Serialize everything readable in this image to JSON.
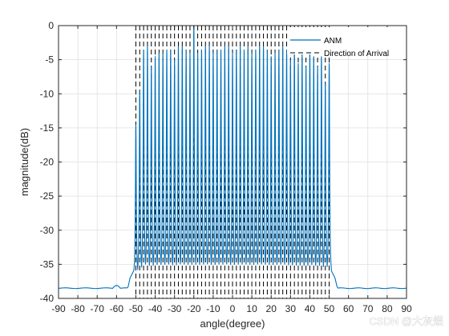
{
  "chart_data": {
    "type": "line",
    "xlabel": "angle(degree)",
    "ylabel": "magnitude(dB)",
    "xlim": [
      -90,
      90
    ],
    "ylim": [
      -40,
      0
    ],
    "xticks": [
      -90,
      -80,
      -70,
      -60,
      -50,
      -40,
      -30,
      -20,
      -10,
      0,
      10,
      20,
      30,
      40,
      50,
      60,
      70,
      80,
      90
    ],
    "yticks": [
      0,
      -5,
      -10,
      -15,
      -20,
      -25,
      -30,
      -35,
      -40
    ],
    "grid": true,
    "legend_position": "top-right",
    "series": [
      {
        "name": "ANM",
        "style": "solid",
        "color": "#0072BD",
        "peaks": [
          {
            "x": -50,
            "y": -14.5
          },
          {
            "x": -48,
            "y": -9.5
          },
          {
            "x": -46,
            "y": -3.5
          },
          {
            "x": -44,
            "y": -3.0
          },
          {
            "x": -42,
            "y": -6.0
          },
          {
            "x": -40,
            "y": -4.5
          },
          {
            "x": -38,
            "y": -4.0
          },
          {
            "x": -36,
            "y": -4.0
          },
          {
            "x": -34,
            "y": -3.5
          },
          {
            "x": -32,
            "y": -3.5
          },
          {
            "x": -30,
            "y": -5.0
          },
          {
            "x": -28,
            "y": -3.0
          },
          {
            "x": -26,
            "y": -3.0
          },
          {
            "x": -24,
            "y": -3.5
          },
          {
            "x": -22,
            "y": -4.0
          },
          {
            "x": -20,
            "y": 0.0
          },
          {
            "x": -18,
            "y": -4.0
          },
          {
            "x": -16,
            "y": -3.5
          },
          {
            "x": -14,
            "y": -3.0
          },
          {
            "x": -12,
            "y": -3.0
          },
          {
            "x": -10,
            "y": -4.0
          },
          {
            "x": -8,
            "y": -3.5
          },
          {
            "x": -6,
            "y": -3.5
          },
          {
            "x": -4,
            "y": -3.0
          },
          {
            "x": -2,
            "y": -3.0
          },
          {
            "x": 0,
            "y": -4.0
          },
          {
            "x": 2,
            "y": -3.5
          },
          {
            "x": 4,
            "y": -3.0
          },
          {
            "x": 6,
            "y": -3.5
          },
          {
            "x": 8,
            "y": -3.0
          },
          {
            "x": 10,
            "y": -4.0
          },
          {
            "x": 12,
            "y": -3.5
          },
          {
            "x": 14,
            "y": -3.0
          },
          {
            "x": 16,
            "y": -3.0
          },
          {
            "x": 18,
            "y": -3.5
          },
          {
            "x": 20,
            "y": -4.5
          },
          {
            "x": 22,
            "y": -4.0
          },
          {
            "x": 24,
            "y": -3.5
          },
          {
            "x": 26,
            "y": -3.0
          },
          {
            "x": 28,
            "y": -3.5
          },
          {
            "x": 30,
            "y": -5.0
          },
          {
            "x": 32,
            "y": -3.5
          },
          {
            "x": 34,
            "y": -5.5
          },
          {
            "x": 36,
            "y": -4.0
          },
          {
            "x": 38,
            "y": -6.0
          },
          {
            "x": 40,
            "y": -3.5
          },
          {
            "x": 42,
            "y": -4.5
          },
          {
            "x": 44,
            "y": -6.0
          },
          {
            "x": 46,
            "y": -4.5
          },
          {
            "x": 48,
            "y": -8.5
          },
          {
            "x": 50,
            "y": -5.5
          }
        ],
        "trough_level": -37.5,
        "floor_level": -38.5
      },
      {
        "name": "Direction of Arrival",
        "style": "dashed",
        "color": "#000000",
        "doa_angles": [
          -50,
          -48,
          -46,
          -44,
          -42,
          -40,
          -38,
          -36,
          -34,
          -32,
          -30,
          -28,
          -26,
          -24,
          -22,
          -20,
          -18,
          -16,
          -14,
          -12,
          -10,
          -8,
          -6,
          -4,
          -2,
          0,
          2,
          4,
          6,
          8,
          10,
          12,
          14,
          16,
          18,
          20,
          22,
          24,
          26,
          28,
          30,
          32,
          34,
          36,
          38,
          40,
          42,
          44,
          46,
          48,
          50
        ]
      }
    ]
  },
  "watermark": "CSDN @大灰煜"
}
